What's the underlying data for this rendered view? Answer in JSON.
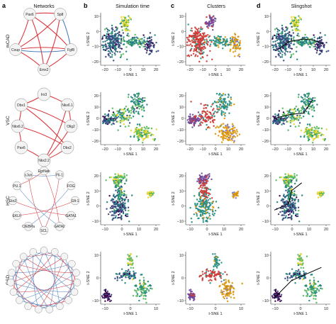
{
  "panel_labels": [
    "a",
    "b",
    "c",
    "d"
  ],
  "column_titles": [
    "Networks",
    "Simulation time",
    "Clusters",
    "Slingshot"
  ],
  "row_labels": [
    "mCAD",
    "VSC",
    "HSC",
    "GSD"
  ],
  "axis_labels": {
    "x": "t-SNE 1",
    "y": "t-SNE 2"
  },
  "rows": [
    {
      "name": "mCAD",
      "nodes": [
        "Pax6",
        "Sp8",
        "Coup",
        "Fgf8",
        "Emx2"
      ],
      "xticks": [
        "−20",
        "−10",
        "0",
        "10",
        "20"
      ],
      "yticks": [
        "10",
        "0",
        "−10",
        "−20"
      ]
    },
    {
      "name": "VSC",
      "nodes": [
        "Irx3",
        "Dbx1",
        "Nkx6.1",
        "Nkx6.2",
        "Olig2",
        "Pax6",
        "Dbx2",
        "Nkx2.2"
      ],
      "xticks": [
        "−20",
        "−10",
        "0",
        "10",
        "20"
      ],
      "yticks": [
        "20",
        "10",
        "0",
        "−10",
        "−20"
      ]
    },
    {
      "name": "HSC",
      "nodes": [
        "EgrNab",
        "Fli-1",
        "FOG",
        "Gfi-1",
        "GATA1",
        "GATA2",
        "SCL",
        "C/EBPa",
        "EKLF",
        "Eto2",
        "PU.1",
        "cJun"
      ],
      "xticks": [
        "−10",
        "0",
        "10",
        "20"
      ],
      "yticks": [
        "20",
        "10",
        "0",
        "−10"
      ]
    },
    {
      "name": "GSD",
      "nodes": [],
      "xticks": [
        "−10",
        "0",
        "10"
      ],
      "yticks": [
        "10",
        "0",
        "−10"
      ]
    }
  ],
  "colors": {
    "activation": "#d7262b",
    "inhibition": "#3b6fb6",
    "viridis": [
      "#440154",
      "#3b528b",
      "#21918c",
      "#5ec962",
      "#fde725"
    ],
    "clusters": [
      "#7b4fa8",
      "#e0423a",
      "#2a9d8f",
      "#f0a202",
      "#8a7ad6",
      "#3a78c2"
    ]
  }
}
